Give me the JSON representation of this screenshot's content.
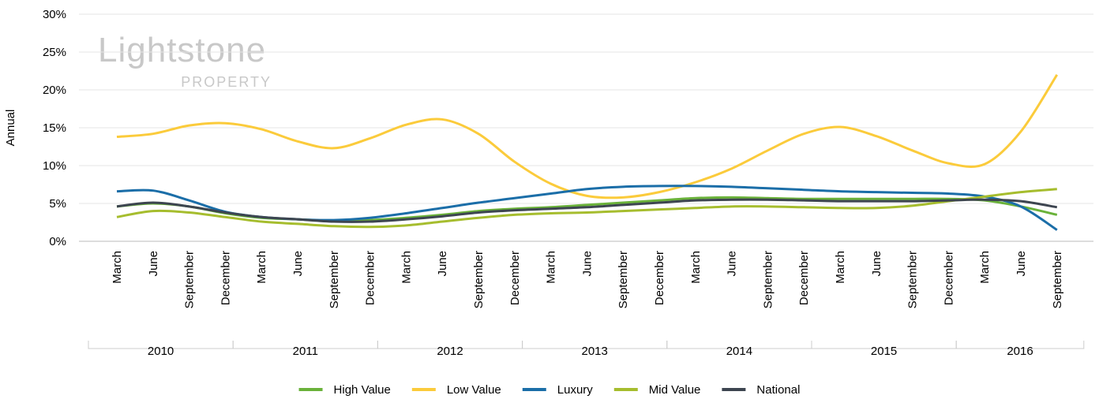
{
  "chart_data": {
    "type": "line",
    "y_label": "Annual",
    "watermark": {
      "text": "Lightstone",
      "sub": "PROPERTY"
    },
    "categories": [
      "March",
      "June",
      "September",
      "December",
      "March",
      "June",
      "September",
      "December",
      "March",
      "June",
      "September",
      "December",
      "March",
      "June",
      "September",
      "December",
      "March",
      "June",
      "September",
      "December",
      "March",
      "June",
      "September",
      "December",
      "March",
      "June",
      "September"
    ],
    "years": [
      "2010",
      "2011",
      "2012",
      "2013",
      "2014",
      "2015",
      "2016"
    ],
    "ylim": [
      0,
      30
    ],
    "yticks": [
      {
        "value": 0,
        "label": "0%"
      },
      {
        "value": 5,
        "label": "5%"
      },
      {
        "value": 10,
        "label": "10%"
      },
      {
        "value": 15,
        "label": "15%"
      },
      {
        "value": 20,
        "label": "20%"
      },
      {
        "value": 25,
        "label": "25%"
      },
      {
        "value": 30,
        "label": "30%"
      }
    ],
    "grid": true,
    "legend": "bottom",
    "series": [
      {
        "name": "High Value",
        "color": "#6ab23a",
        "values": [
          4.6,
          5.0,
          4.6,
          3.7,
          3.1,
          2.9,
          2.7,
          2.8,
          3.1,
          3.5,
          4.0,
          4.3,
          4.5,
          4.8,
          5.1,
          5.4,
          5.7,
          5.8,
          5.7,
          5.6,
          5.6,
          5.6,
          5.6,
          5.6,
          5.4,
          4.6,
          3.5
        ]
      },
      {
        "name": "Low Value",
        "color": "#fbcb3b",
        "values": [
          13.8,
          14.2,
          15.3,
          15.6,
          14.8,
          13.2,
          12.3,
          13.6,
          15.4,
          16.1,
          14.2,
          10.5,
          7.6,
          6.0,
          5.8,
          6.5,
          7.8,
          9.6,
          12.0,
          14.2,
          15.1,
          13.9,
          12.0,
          10.3,
          10.2,
          14.5,
          22.0
        ]
      },
      {
        "name": "Luxury",
        "color": "#1b6ea8",
        "values": [
          6.6,
          6.7,
          5.4,
          3.9,
          3.2,
          2.9,
          2.8,
          3.1,
          3.7,
          4.4,
          5.1,
          5.7,
          6.3,
          6.9,
          7.2,
          7.3,
          7.3,
          7.2,
          7.0,
          6.8,
          6.6,
          6.5,
          6.4,
          6.3,
          5.9,
          4.6,
          1.5
        ]
      },
      {
        "name": "Mid Value",
        "color": "#a6bd2e",
        "values": [
          3.2,
          4.0,
          3.8,
          3.2,
          2.6,
          2.3,
          2.0,
          1.9,
          2.1,
          2.6,
          3.1,
          3.5,
          3.7,
          3.8,
          4.0,
          4.2,
          4.4,
          4.6,
          4.6,
          4.5,
          4.4,
          4.4,
          4.7,
          5.3,
          5.9,
          6.5,
          6.9
        ]
      },
      {
        "name": "National",
        "color": "#3d4550",
        "values": [
          4.6,
          5.1,
          4.6,
          3.8,
          3.2,
          2.9,
          2.6,
          2.6,
          2.9,
          3.3,
          3.8,
          4.1,
          4.3,
          4.5,
          4.8,
          5.1,
          5.4,
          5.5,
          5.5,
          5.4,
          5.3,
          5.3,
          5.3,
          5.4,
          5.5,
          5.3,
          4.5
        ]
      }
    ]
  }
}
